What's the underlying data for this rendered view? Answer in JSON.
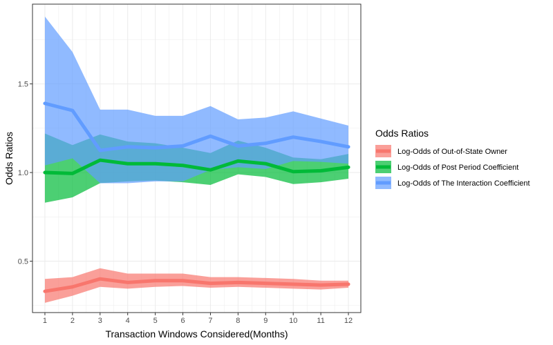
{
  "chart_data": {
    "type": "line",
    "xlabel": "Transaction Windows Considered(Months)",
    "ylabel": "Odds Ratios",
    "x": [
      1,
      2,
      3,
      4,
      5,
      6,
      7,
      8,
      9,
      10,
      11,
      12
    ],
    "x_ticks": [
      "1",
      "2",
      "3",
      "4",
      "5",
      "6",
      "7",
      "8",
      "9",
      "10",
      "11",
      "12"
    ],
    "xlim": [
      0.55,
      12.45
    ],
    "y_ticks": [
      "0.5",
      "1.0",
      "1.5"
    ],
    "y_tick_values": [
      0.5,
      1.0,
      1.5
    ],
    "ylim": [
      0.21,
      1.95
    ],
    "grid": true,
    "legend": {
      "title": "Odds Ratios",
      "position": "right"
    },
    "series": [
      {
        "name": "Log-Odds of Out-of-State Owner",
        "color": "#F8766D",
        "values": [
          0.33,
          0.355,
          0.4,
          0.38,
          0.39,
          0.39,
          0.375,
          0.38,
          0.375,
          0.37,
          0.365,
          0.37
        ],
        "lower": [
          0.265,
          0.305,
          0.355,
          0.345,
          0.355,
          0.36,
          0.35,
          0.355,
          0.35,
          0.345,
          0.34,
          0.35
        ],
        "upper": [
          0.4,
          0.41,
          0.46,
          0.43,
          0.43,
          0.43,
          0.41,
          0.41,
          0.405,
          0.4,
          0.39,
          0.39
        ]
      },
      {
        "name": "Log-Odds of Post Period Coefficient",
        "color": "#00BA38",
        "values": [
          1.0,
          0.995,
          1.07,
          1.05,
          1.05,
          1.04,
          1.015,
          1.065,
          1.05,
          1.005,
          1.01,
          1.03
        ],
        "lower": [
          0.83,
          0.86,
          0.94,
          0.95,
          0.955,
          0.945,
          0.93,
          0.99,
          0.975,
          0.935,
          0.945,
          0.965
        ],
        "upper": [
          1.22,
          1.155,
          1.215,
          1.175,
          1.165,
          1.14,
          1.11,
          1.18,
          1.14,
          1.085,
          1.075,
          1.105
        ]
      },
      {
        "name": "Log-Odds of The Interaction Coefficient",
        "color": "#619CFF",
        "values": [
          1.39,
          1.35,
          1.125,
          1.145,
          1.14,
          1.15,
          1.205,
          1.15,
          1.165,
          1.2,
          1.175,
          1.145
        ],
        "lower": [
          1.04,
          1.08,
          0.94,
          0.94,
          0.95,
          0.95,
          1.015,
          1.03,
          1.02,
          1.065,
          1.06,
          1.05
        ],
        "upper": [
          1.88,
          1.68,
          1.355,
          1.355,
          1.32,
          1.32,
          1.375,
          1.3,
          1.31,
          1.345,
          1.305,
          1.265
        ]
      }
    ]
  }
}
